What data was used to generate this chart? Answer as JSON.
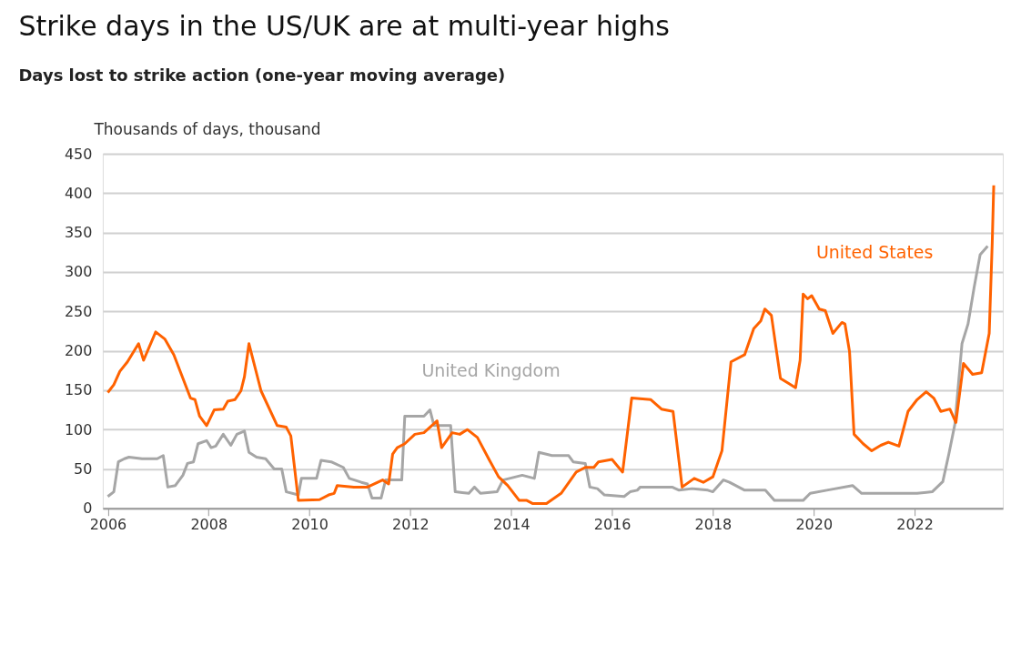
{
  "chart_data": {
    "type": "line",
    "title": "Strike days in the US/UK are at multi-year highs",
    "subtitle": "Days lost to strike action (one-year moving average)",
    "ylabel": "Thousands of days, thousand",
    "xlim": [
      2005.9,
      2023.75
    ],
    "xticks": [
      2006,
      2008,
      2010,
      2012,
      2014,
      2016,
      2018,
      2020,
      2022
    ],
    "ylim": [
      0,
      450
    ],
    "yticks": [
      0,
      50,
      100,
      150,
      200,
      250,
      300,
      350,
      400,
      450
    ],
    "grid": "y",
    "legend": false,
    "marker": "none",
    "line_style": "solid",
    "series": [
      {
        "name": "United Kingdom",
        "color": "#a6a6a6",
        "x": [
          2006.0,
          2006.12,
          2006.21,
          2006.33,
          2006.42,
          2006.68,
          2006.98,
          2007.1,
          2007.19,
          2007.34,
          2007.49,
          2007.58,
          2007.7,
          2007.79,
          2007.96,
          2008.05,
          2008.14,
          2008.29,
          2008.44,
          2008.56,
          2008.71,
          2008.8,
          2008.95,
          2009.13,
          2009.3,
          2009.45,
          2009.54,
          2009.78,
          2009.84,
          2010.14,
          2010.23,
          2010.43,
          2010.67,
          2010.79,
          2011.03,
          2011.15,
          2011.24,
          2011.42,
          2011.51,
          2011.83,
          2011.89,
          2012.27,
          2012.39,
          2012.47,
          2012.8,
          2012.89,
          2013.16,
          2013.27,
          2013.39,
          2013.72,
          2013.84,
          2014.22,
          2014.46,
          2014.55,
          2014.81,
          2015.14,
          2015.23,
          2015.47,
          2015.56,
          2015.71,
          2015.85,
          2016.24,
          2016.36,
          2016.5,
          2016.56,
          2016.95,
          2017.19,
          2017.33,
          2017.59,
          2017.9,
          2018.0,
          2018.21,
          2018.33,
          2018.63,
          2019.04,
          2019.22,
          2019.79,
          2019.93,
          2020.26,
          2020.77,
          2020.95,
          2022.05,
          2022.35,
          2022.56,
          2022.68,
          2022.8,
          2022.94,
          2023.06,
          2023.18,
          2023.3,
          2023.45
        ],
        "values": [
          15,
          21,
          59,
          63,
          65,
          63,
          63,
          67,
          27,
          29,
          42,
          57,
          59,
          82,
          86,
          77,
          79,
          94,
          80,
          94,
          98,
          71,
          65,
          63,
          50,
          50,
          21,
          17,
          38,
          38,
          61,
          59,
          52,
          38,
          33,
          31,
          13,
          13,
          36,
          36,
          117,
          117,
          125,
          105,
          105,
          21,
          19,
          27,
          19,
          21,
          36,
          42,
          38,
          71,
          67,
          67,
          59,
          57,
          27,
          25,
          17,
          15,
          21,
          23,
          27,
          27,
          27,
          23,
          25,
          23,
          21,
          36,
          33,
          23,
          23,
          10,
          10,
          19,
          23,
          29,
          19,
          19,
          21,
          34,
          69,
          107,
          209,
          234,
          280,
          322,
          333
        ]
      },
      {
        "name": "United States",
        "color": "#ff6200",
        "x": [
          2006.0,
          2006.12,
          2006.24,
          2006.39,
          2006.61,
          2006.71,
          2006.95,
          2007.13,
          2007.31,
          2007.64,
          2007.73,
          2007.82,
          2007.96,
          2008.11,
          2008.29,
          2008.38,
          2008.52,
          2008.64,
          2008.71,
          2008.8,
          2009.04,
          2009.36,
          2009.54,
          2009.63,
          2009.78,
          2010.2,
          2010.38,
          2010.49,
          2010.55,
          2010.88,
          2011.15,
          2011.45,
          2011.57,
          2011.65,
          2011.74,
          2011.89,
          2012.09,
          2012.27,
          2012.53,
          2012.62,
          2012.83,
          2012.98,
          2013.13,
          2013.33,
          2013.57,
          2013.75,
          2013.93,
          2014.16,
          2014.31,
          2014.43,
          2014.7,
          2014.99,
          2015.29,
          2015.47,
          2015.64,
          2015.73,
          2016.0,
          2016.21,
          2016.39,
          2016.77,
          2016.98,
          2017.21,
          2017.39,
          2017.63,
          2017.81,
          2018.0,
          2018.18,
          2018.36,
          2018.63,
          2018.81,
          2018.95,
          2019.03,
          2019.16,
          2019.34,
          2019.49,
          2019.64,
          2019.73,
          2019.79,
          2019.88,
          2019.96,
          2020.11,
          2020.23,
          2020.38,
          2020.56,
          2020.62,
          2020.71,
          2020.8,
          2020.98,
          2021.15,
          2021.33,
          2021.48,
          2021.69,
          2021.87,
          2022.05,
          2022.23,
          2022.38,
          2022.52,
          2022.7,
          2022.82,
          2022.97,
          2023.15,
          2023.33,
          2023.48,
          2023.54,
          2023.57
        ],
        "values": [
          147,
          157,
          174,
          186,
          209,
          188,
          224,
          215,
          195,
          140,
          138,
          117,
          105,
          125,
          126,
          136,
          138,
          149,
          167,
          209,
          149,
          105,
          103,
          92,
          10,
          11,
          17,
          19,
          29,
          27,
          27,
          36,
          31,
          69,
          77,
          82,
          94,
          96,
          111,
          77,
          96,
          94,
          100,
          90,
          61,
          40,
          29,
          10,
          10,
          6,
          6,
          19,
          46,
          52,
          52,
          59,
          62,
          46,
          140,
          138,
          126,
          123,
          27,
          38,
          33,
          40,
          73,
          186,
          195,
          228,
          238,
          253,
          245,
          165,
          159,
          153,
          188,
          272,
          266,
          270,
          253,
          251,
          222,
          236,
          234,
          199,
          94,
          82,
          73,
          80,
          84,
          79,
          123,
          138,
          148,
          140,
          123,
          126,
          109,
          184,
          170,
          172,
          222,
          337,
          410
        ]
      }
    ]
  }
}
